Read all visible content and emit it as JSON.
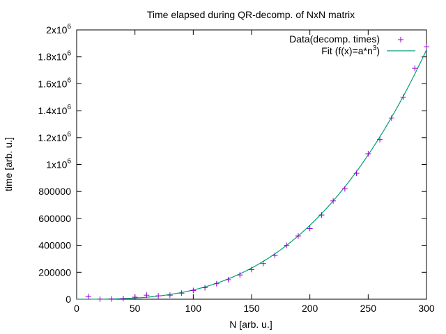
{
  "chart_data": {
    "type": "scatter",
    "title": "Time elapsed during QR-decomp. of NxN matrix",
    "xlabel": "N [arb. u.]",
    "ylabel": "time [arb. u.]",
    "xlim": [
      0,
      300
    ],
    "ylim": [
      0,
      2000000
    ],
    "grid": false,
    "legend_position": "top-right",
    "x_ticks": [
      {
        "value": 0,
        "label": "0"
      },
      {
        "value": 50,
        "label": "50"
      },
      {
        "value": 100,
        "label": "100"
      },
      {
        "value": 150,
        "label": "150"
      },
      {
        "value": 200,
        "label": "200"
      },
      {
        "value": 250,
        "label": "250"
      },
      {
        "value": 300,
        "label": "300"
      }
    ],
    "y_ticks": [
      {
        "value": 0,
        "base": "0",
        "sup": ""
      },
      {
        "value": 200000,
        "base": "200000",
        "sup": ""
      },
      {
        "value": 400000,
        "base": "400000",
        "sup": ""
      },
      {
        "value": 600000,
        "base": "600000",
        "sup": ""
      },
      {
        "value": 800000,
        "base": "800000",
        "sup": ""
      },
      {
        "value": 1000000,
        "base": "1x10",
        "sup": "6"
      },
      {
        "value": 1200000,
        "base": "1.2x10",
        "sup": "6"
      },
      {
        "value": 1400000,
        "base": "1.4x10",
        "sup": "6"
      },
      {
        "value": 1600000,
        "base": "1.6x10",
        "sup": "6"
      },
      {
        "value": 1800000,
        "base": "1.8x10",
        "sup": "6"
      },
      {
        "value": 2000000,
        "base": "2x10",
        "sup": "6"
      }
    ],
    "series": [
      {
        "name": "Data(decomp. times)",
        "kind": "points",
        "marker": "plus",
        "color": "#9400d3",
        "x": [
          10,
          20,
          30,
          40,
          50,
          60,
          70,
          80,
          90,
          100,
          110,
          120,
          130,
          140,
          150,
          160,
          170,
          180,
          190,
          200,
          210,
          220,
          230,
          240,
          250,
          260,
          270,
          280,
          290,
          300
        ],
        "y": [
          20000,
          0,
          2000,
          5000,
          15000,
          30000,
          25000,
          30000,
          45000,
          65000,
          85000,
          115000,
          145000,
          180000,
          220000,
          265000,
          325000,
          400000,
          470000,
          525000,
          625000,
          730000,
          820000,
          935000,
          1080000,
          1185000,
          1345000,
          1500000,
          1715000,
          1875000
        ]
      },
      {
        "name": "Fit (f(x)=a*n",
        "name_sup": "3",
        "name_tail": ")",
        "kind": "line",
        "color": "#009e73",
        "coefficient": 0.0686
      }
    ]
  }
}
